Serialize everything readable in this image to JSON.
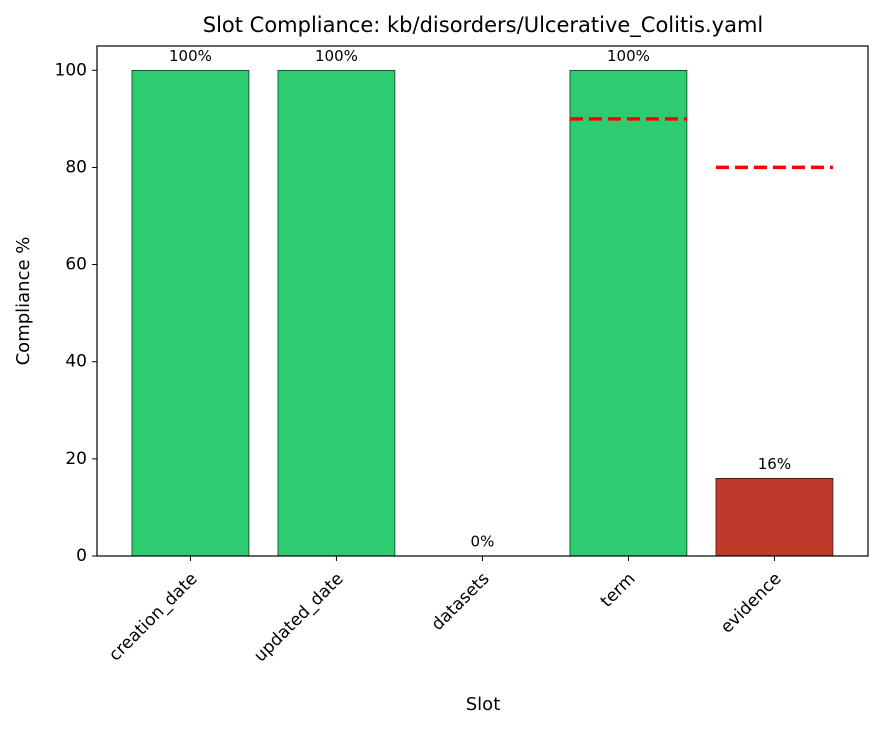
{
  "chart_data": {
    "type": "bar",
    "title": "Slot Compliance: kb/disorders/Ulcerative_Colitis.yaml",
    "x_label": "Slot",
    "y_label": "Compliance %",
    "categories": [
      "creation_date",
      "updated_date",
      "datasets",
      "term",
      "evidence"
    ],
    "values": [
      100,
      100,
      0,
      100,
      16
    ],
    "value_labels": [
      "100%",
      "100%",
      "0%",
      "100%",
      "16%"
    ],
    "colors": [
      "#2ecc71",
      "#2ecc71",
      "#c0392b",
      "#2ecc71",
      "#c0392b"
    ],
    "thresholds": [
      null,
      null,
      null,
      90,
      80
    ],
    "threshold_color": "#ff0000",
    "ylim": [
      0,
      105
    ],
    "yticks": [
      0,
      20,
      40,
      60,
      80,
      100
    ],
    "grid": false
  }
}
